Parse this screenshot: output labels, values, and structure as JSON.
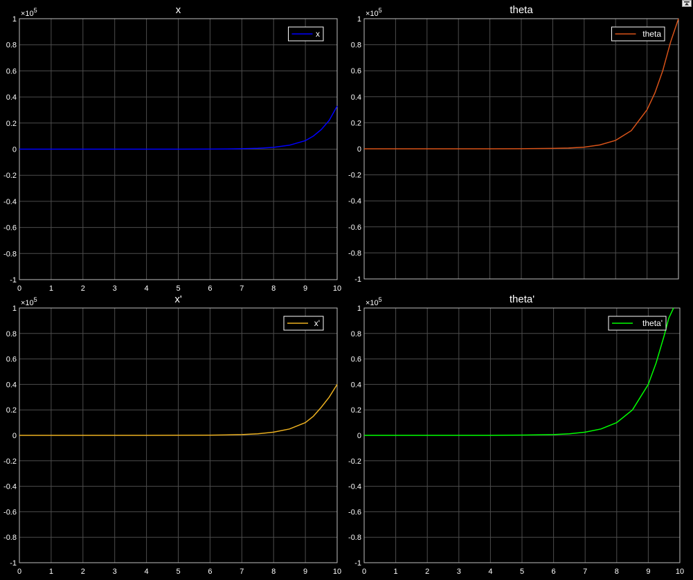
{
  "figure": {
    "background": "#000000",
    "grid_color": "#4d4d4d",
    "axis_color": "#c0c0c0",
    "text_color": "#ffffff"
  },
  "toolbar": {
    "icon": "restore-figure-icon"
  },
  "chart_data": [
    {
      "type": "line",
      "title": "x",
      "xlabel": "",
      "ylabel": "",
      "exponent_label": "×10",
      "exponent_power": "5",
      "xlim": [
        0,
        10
      ],
      "ylim": [
        -1,
        1
      ],
      "xticks": [
        0,
        1,
        2,
        3,
        4,
        5,
        6,
        7,
        8,
        9,
        10
      ],
      "yticks": [
        -1,
        -0.8,
        -0.6,
        -0.4,
        -0.2,
        0,
        0.2,
        0.4,
        0.6,
        0.8,
        1
      ],
      "xtick_labels": [
        "0",
        "1",
        "2",
        "3",
        "4",
        "5",
        "6",
        "7",
        "8",
        "9",
        "10"
      ],
      "ytick_labels": [
        "-1",
        "-0.8",
        "-0.6",
        "-0.4",
        "-0.2",
        "0",
        "0.2",
        "0.4",
        "0.6",
        "0.8",
        "1"
      ],
      "grid": true,
      "legend_position": "top-right",
      "series": [
        {
          "name": "x",
          "color": "#0000ff",
          "x": [
            0,
            1,
            2,
            3,
            4,
            5,
            6,
            6.5,
            7,
            7.5,
            8,
            8.5,
            9,
            9.25,
            9.5,
            9.75,
            10
          ],
          "y": [
            0,
            0,
            0,
            0,
            0,
            0.0002,
            0.0007,
            0.0014,
            0.003,
            0.0065,
            0.014,
            0.03,
            0.065,
            0.1,
            0.15,
            0.22,
            0.33
          ]
        }
      ]
    },
    {
      "type": "line",
      "title": "theta",
      "xlabel": "",
      "ylabel": "",
      "exponent_label": "×10",
      "exponent_power": "5",
      "xlim": [
        0,
        10
      ],
      "ylim": [
        -1,
        1
      ],
      "xticks": [
        0,
        1,
        2,
        3,
        4,
        5,
        6,
        7,
        8,
        9,
        10
      ],
      "yticks": [
        -1,
        -0.8,
        -0.6,
        -0.4,
        -0.2,
        0,
        0.2,
        0.4,
        0.6,
        0.8,
        1
      ],
      "xtick_labels": [
        "",
        "",
        "",
        "",
        "",
        "",
        "",
        "",
        "",
        "",
        ""
      ],
      "ytick_labels": [
        "-1",
        "-0.8",
        "-0.6",
        "-0.4",
        "-0.2",
        "0",
        "0.2",
        "0.4",
        "0.6",
        "0.8",
        "1"
      ],
      "grid": true,
      "legend_position": "top-right",
      "series": [
        {
          "name": "theta",
          "color": "#d95319",
          "x": [
            0,
            1,
            2,
            3,
            4,
            5,
            6,
            6.5,
            7,
            7.5,
            8,
            8.5,
            9,
            9.25,
            9.5,
            9.75,
            10
          ],
          "y": [
            0,
            0,
            0,
            0,
            0,
            0.0006,
            0.003,
            0.006,
            0.013,
            0.03,
            0.065,
            0.14,
            0.3,
            0.43,
            0.6,
            0.82,
            1.0
          ]
        }
      ]
    },
    {
      "type": "line",
      "title": "x'",
      "xlabel": "",
      "ylabel": "",
      "exponent_label": "×10",
      "exponent_power": "5",
      "xlim": [
        0,
        10
      ],
      "ylim": [
        -1,
        1
      ],
      "xticks": [
        0,
        1,
        2,
        3,
        4,
        5,
        6,
        7,
        8,
        9,
        10
      ],
      "yticks": [
        -1,
        -0.8,
        -0.6,
        -0.4,
        -0.2,
        0,
        0.2,
        0.4,
        0.6,
        0.8,
        1
      ],
      "xtick_labels": [
        "0",
        "1",
        "2",
        "3",
        "4",
        "5",
        "6",
        "7",
        "8",
        "9",
        "10"
      ],
      "ytick_labels": [
        "-1",
        "-0.8",
        "-0.6",
        "-0.4",
        "-0.2",
        "0",
        "0.2",
        "0.4",
        "0.6",
        "0.8",
        "1"
      ],
      "grid": true,
      "legend_position": "top-right",
      "series": [
        {
          "name": "x'",
          "color": "#edb120",
          "x": [
            0,
            1,
            2,
            3,
            4,
            5,
            6,
            6.5,
            7,
            7.5,
            8,
            8.5,
            9,
            9.25,
            9.5,
            9.75,
            10
          ],
          "y": [
            0,
            0,
            0,
            0,
            0,
            0.0005,
            0.0015,
            0.003,
            0.006,
            0.012,
            0.025,
            0.05,
            0.1,
            0.15,
            0.22,
            0.3,
            0.4
          ]
        }
      ]
    },
    {
      "type": "line",
      "title": "theta'",
      "xlabel": "",
      "ylabel": "",
      "exponent_label": "×10",
      "exponent_power": "5",
      "xlim": [
        0,
        10
      ],
      "ylim": [
        -1,
        1
      ],
      "xticks": [
        0,
        1,
        2,
        3,
        4,
        5,
        6,
        7,
        8,
        9,
        10
      ],
      "yticks": [
        -1,
        -0.8,
        -0.6,
        -0.4,
        -0.2,
        0,
        0.2,
        0.4,
        0.6,
        0.8,
        1
      ],
      "xtick_labels": [
        "0",
        "1",
        "2",
        "3",
        "4",
        "5",
        "6",
        "7",
        "8",
        "9",
        "10"
      ],
      "ytick_labels": [
        "-1",
        "-0.8",
        "-0.6",
        "-0.4",
        "-0.2",
        "0",
        "0.2",
        "0.4",
        "0.6",
        "0.8",
        "1"
      ],
      "grid": true,
      "legend_position": "top-right",
      "series": [
        {
          "name": "theta'",
          "color": "#00ff00",
          "x": [
            0,
            1,
            2,
            3,
            4,
            5,
            6,
            6.5,
            7,
            7.5,
            8,
            8.5,
            9,
            9.25,
            9.5,
            9.65,
            9.8
          ],
          "y": [
            0,
            0,
            0,
            0,
            0,
            0.002,
            0.006,
            0.012,
            0.025,
            0.05,
            0.1,
            0.2,
            0.4,
            0.57,
            0.78,
            0.92,
            1.0
          ]
        }
      ]
    }
  ]
}
